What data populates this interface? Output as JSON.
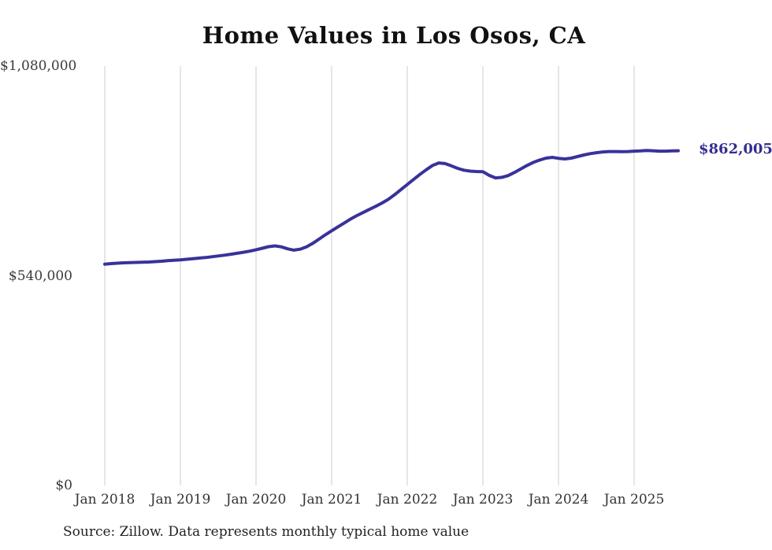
{
  "chart_data": {
    "type": "line",
    "title": "Home Values in Los Osos, CA",
    "xlabel": "",
    "ylabel": "",
    "source": "Source: Zillow. Data represents monthly typical home value",
    "end_label": "$862,005",
    "line_color": "#38329b",
    "end_label_color": "#332e8f",
    "grid": "vertical-only",
    "legend": "none",
    "ylim": [
      0,
      1080000
    ],
    "y_ticks": [
      {
        "label": "$0",
        "value": 0
      },
      {
        "label": "$540,000",
        "value": 540000
      },
      {
        "label": "$1,080,000",
        "value": 1080000
      }
    ],
    "x_tick_labels": [
      "Jan 2018",
      "Jan 2019",
      "Jan 2020",
      "Jan 2021",
      "Jan 2022",
      "Jan 2023",
      "Jan 2024",
      "Jan 2025"
    ],
    "series": [
      {
        "name": "Monthly typical home value",
        "start": "Jan 2018",
        "end": "Aug 2025",
        "frequency": "monthly",
        "final_value": 862005,
        "values": [
          570000,
          571500,
          572500,
          573500,
          574000,
          574500,
          575000,
          575500,
          576500,
          577500,
          579000,
          580000,
          581000,
          582500,
          584000,
          585500,
          587000,
          589000,
          591000,
          593000,
          595500,
          598000,
          600500,
          603500,
          607000,
          611000,
          615000,
          617000,
          614500,
          609500,
          606000,
          608500,
          614500,
          623500,
          634500,
          645500,
          656000,
          666000,
          676000,
          686000,
          695000,
          703000,
          711000,
          719000,
          727500,
          737000,
          749000,
          762000,
          775000,
          788000,
          801000,
          813000,
          824000,
          830500,
          829000,
          823000,
          816500,
          812000,
          809500,
          808500,
          808000,
          798500,
          792000,
          793500,
          798000,
          806000,
          815000,
          824000,
          832000,
          838000,
          843000,
          845000,
          842500,
          841000,
          843000,
          847000,
          851000,
          854500,
          857000,
          859000,
          860000,
          860000,
          859500,
          860000,
          861000,
          861500,
          862500,
          862000,
          861000,
          861000,
          861500,
          862005
        ]
      }
    ]
  }
}
